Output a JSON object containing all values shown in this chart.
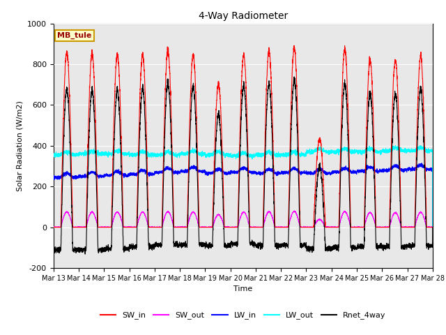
{
  "title": "4-Way Radiometer",
  "xlabel": "Time",
  "ylabel": "Solar Radiation (W/m2)",
  "ylim": [
    -200,
    1000
  ],
  "background_color": "#e8e8e8",
  "annotation_text": "MB_tule",
  "annotation_bg": "#ffffcc",
  "annotation_border": "#cc9900",
  "x_tick_labels": [
    "Mar 13",
    "Mar 14",
    "Mar 15",
    "Mar 16",
    "Mar 17",
    "Mar 18",
    "Mar 19",
    "Mar 20",
    "Mar 21",
    "Mar 22",
    "Mar 23",
    "Mar 24",
    "Mar 25",
    "Mar 26",
    "Mar 27",
    "Mar 28"
  ],
  "legend_entries": [
    {
      "label": "SW_in",
      "color": "#ff0000"
    },
    {
      "label": "SW_out",
      "color": "#ff00ff"
    },
    {
      "label": "LW_in",
      "color": "#0000ff"
    },
    {
      "label": "LW_out",
      "color": "#00ffff"
    },
    {
      "label": "Rnet_4way",
      "color": "#000000"
    }
  ],
  "sw_in_peaks": [
    860,
    855,
    845,
    845,
    865,
    845,
    700,
    845,
    865,
    880,
    430,
    875,
    820,
    820,
    835
  ],
  "lw_in_base": [
    245,
    250,
    255,
    260,
    270,
    275,
    265,
    270,
    265,
    268,
    265,
    270,
    275,
    280,
    285
  ],
  "lw_out_base": [
    355,
    360,
    360,
    355,
    355,
    360,
    355,
    350,
    355,
    355,
    370,
    370,
    370,
    375,
    375
  ],
  "rnet_night": -100,
  "figsize": [
    6.4,
    4.8
  ],
  "dpi": 100
}
